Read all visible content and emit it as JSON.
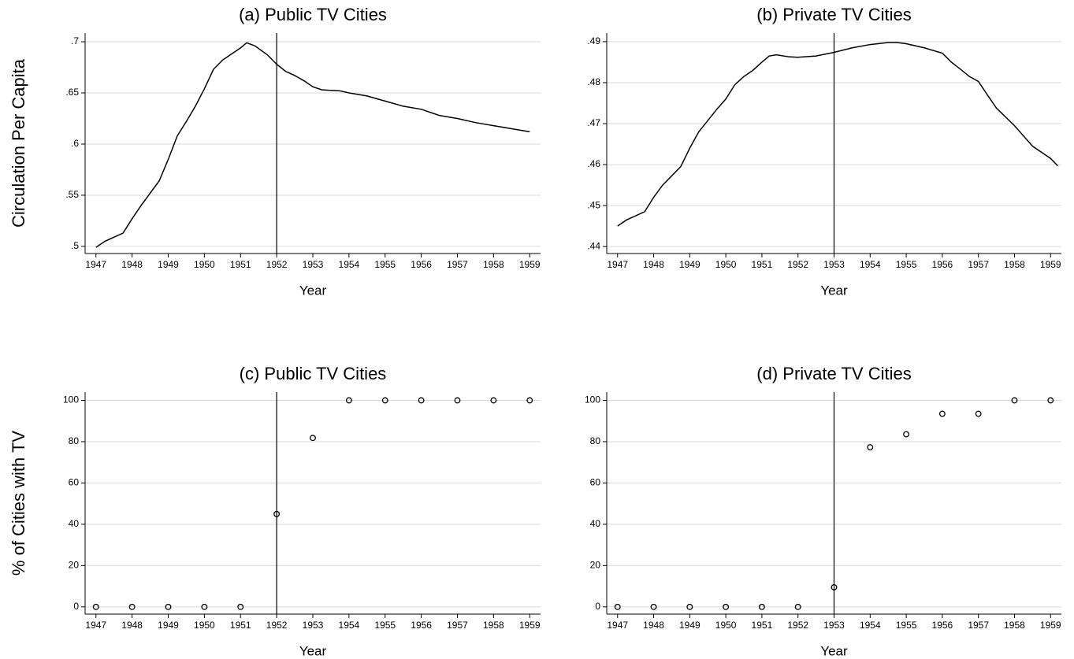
{
  "chart_data": [
    {
      "type": "line",
      "title": "(a) Public TV Cities",
      "ylabel": "Circulation Per Capita",
      "xlabel": "Year",
      "x": [
        1947.0,
        1947.25,
        1947.75,
        1948.0,
        1948.25,
        1948.75,
        1949.0,
        1949.25,
        1949.5,
        1949.75,
        1950.0,
        1950.25,
        1950.5,
        1950.75,
        1951.0,
        1951.17,
        1951.4,
        1951.75,
        1952.0,
        1952.25,
        1952.5,
        1952.75,
        1953.0,
        1953.25,
        1953.75,
        1954.0,
        1954.5,
        1955.0,
        1955.5,
        1956.0,
        1956.5,
        1957.0,
        1957.5,
        1958.0,
        1958.5,
        1959.0
      ],
      "values": [
        0.499,
        0.505,
        0.513,
        0.527,
        0.54,
        0.564,
        0.585,
        0.608,
        0.622,
        0.637,
        0.654,
        0.673,
        0.682,
        0.688,
        0.694,
        0.699,
        0.696,
        0.687,
        0.678,
        0.671,
        0.667,
        0.662,
        0.656,
        0.653,
        0.652,
        0.65,
        0.647,
        0.642,
        0.637,
        0.634,
        0.628,
        0.625,
        0.621,
        0.618,
        0.615,
        0.612
      ],
      "color": "#000000",
      "xlim": [
        1946.7,
        1959.3
      ],
      "ylim": [
        0.493,
        0.7085
      ],
      "xticks": [
        1947,
        1948,
        1949,
        1950,
        1951,
        1952,
        1953,
        1954,
        1955,
        1956,
        1957,
        1958,
        1959
      ],
      "yticks": [
        {
          "value": 0.5,
          "label": ".5"
        },
        {
          "value": 0.55,
          "label": ".55"
        },
        {
          "value": 0.6,
          "label": ".6"
        },
        {
          "value": 0.65,
          "label": ".65"
        },
        {
          "value": 0.7,
          "label": ".7"
        }
      ],
      "vline": 1952,
      "grid": true
    },
    {
      "type": "line",
      "title": "(b) Private TV Cities",
      "xlabel": "Year",
      "x": [
        1947.0,
        1947.25,
        1947.75,
        1948.0,
        1948.25,
        1948.75,
        1949.0,
        1949.25,
        1949.75,
        1950.0,
        1950.25,
        1950.5,
        1950.75,
        1951.0,
        1951.2,
        1951.4,
        1951.75,
        1952.0,
        1952.5,
        1953.0,
        1953.5,
        1954.0,
        1954.5,
        1954.75,
        1955.0,
        1955.5,
        1956.0,
        1956.25,
        1956.5,
        1956.75,
        1957.0,
        1957.25,
        1957.5,
        1958.0,
        1958.3,
        1958.5,
        1959.0,
        1959.2
      ],
      "values": [
        0.445,
        0.4465,
        0.4485,
        0.452,
        0.455,
        0.4595,
        0.464,
        0.468,
        0.4735,
        0.476,
        0.4795,
        0.4815,
        0.483,
        0.485,
        0.4865,
        0.4868,
        0.4863,
        0.4862,
        0.4865,
        0.4874,
        0.4885,
        0.4893,
        0.4898,
        0.4898,
        0.4895,
        0.4885,
        0.4872,
        0.485,
        0.4833,
        0.4815,
        0.4803,
        0.477,
        0.4738,
        0.4695,
        0.4665,
        0.4645,
        0.4615,
        0.4597
      ],
      "color": "#000000",
      "xlim": [
        1946.7,
        1959.3
      ],
      "ylim": [
        0.4383,
        0.4921
      ],
      "xticks": [
        1947,
        1948,
        1949,
        1950,
        1951,
        1952,
        1953,
        1954,
        1955,
        1956,
        1957,
        1958,
        1959
      ],
      "yticks": [
        {
          "value": 0.44,
          "label": ".44"
        },
        {
          "value": 0.45,
          "label": ".45"
        },
        {
          "value": 0.46,
          "label": ".46"
        },
        {
          "value": 0.47,
          "label": ".47"
        },
        {
          "value": 0.48,
          "label": ".48"
        },
        {
          "value": 0.49,
          "label": ".49"
        }
      ],
      "vline": 1953,
      "grid": true
    },
    {
      "type": "scatter",
      "title": "(c) Public TV Cities",
      "ylabel": "% of Cities with TV",
      "xlabel": "Year",
      "x": [
        1947,
        1948,
        1949,
        1950,
        1951,
        1952,
        1953,
        1954,
        1955,
        1956,
        1957,
        1958,
        1959
      ],
      "values": [
        0,
        0,
        0,
        0,
        0,
        45,
        81.8,
        100,
        100,
        100,
        100,
        100,
        100
      ],
      "color": "#000000",
      "xlim": [
        1946.7,
        1959.3
      ],
      "ylim": [
        -3.5,
        104
      ],
      "xticks": [
        1947,
        1948,
        1949,
        1950,
        1951,
        1952,
        1953,
        1954,
        1955,
        1956,
        1957,
        1958,
        1959
      ],
      "yticks": [
        0,
        20,
        40,
        60,
        80,
        100
      ],
      "vline": 1952,
      "grid": true
    },
    {
      "type": "scatter",
      "title": "(d) Private TV Cities",
      "xlabel": "Year",
      "x": [
        1947,
        1948,
        1949,
        1950,
        1951,
        1952,
        1953,
        1954,
        1955,
        1956,
        1957,
        1958,
        1959
      ],
      "values": [
        0,
        0,
        0,
        0,
        0,
        0,
        9.5,
        77.3,
        83.6,
        93.5,
        93.5,
        100,
        100
      ],
      "color": "#000000",
      "xlim": [
        1946.7,
        1959.3
      ],
      "ylim": [
        -3.5,
        104
      ],
      "xticks": [
        1947,
        1948,
        1949,
        1950,
        1951,
        1952,
        1953,
        1954,
        1955,
        1956,
        1957,
        1958,
        1959
      ],
      "yticks": [
        0,
        20,
        40,
        60,
        80,
        100
      ],
      "vline": 1953,
      "grid": true
    }
  ]
}
